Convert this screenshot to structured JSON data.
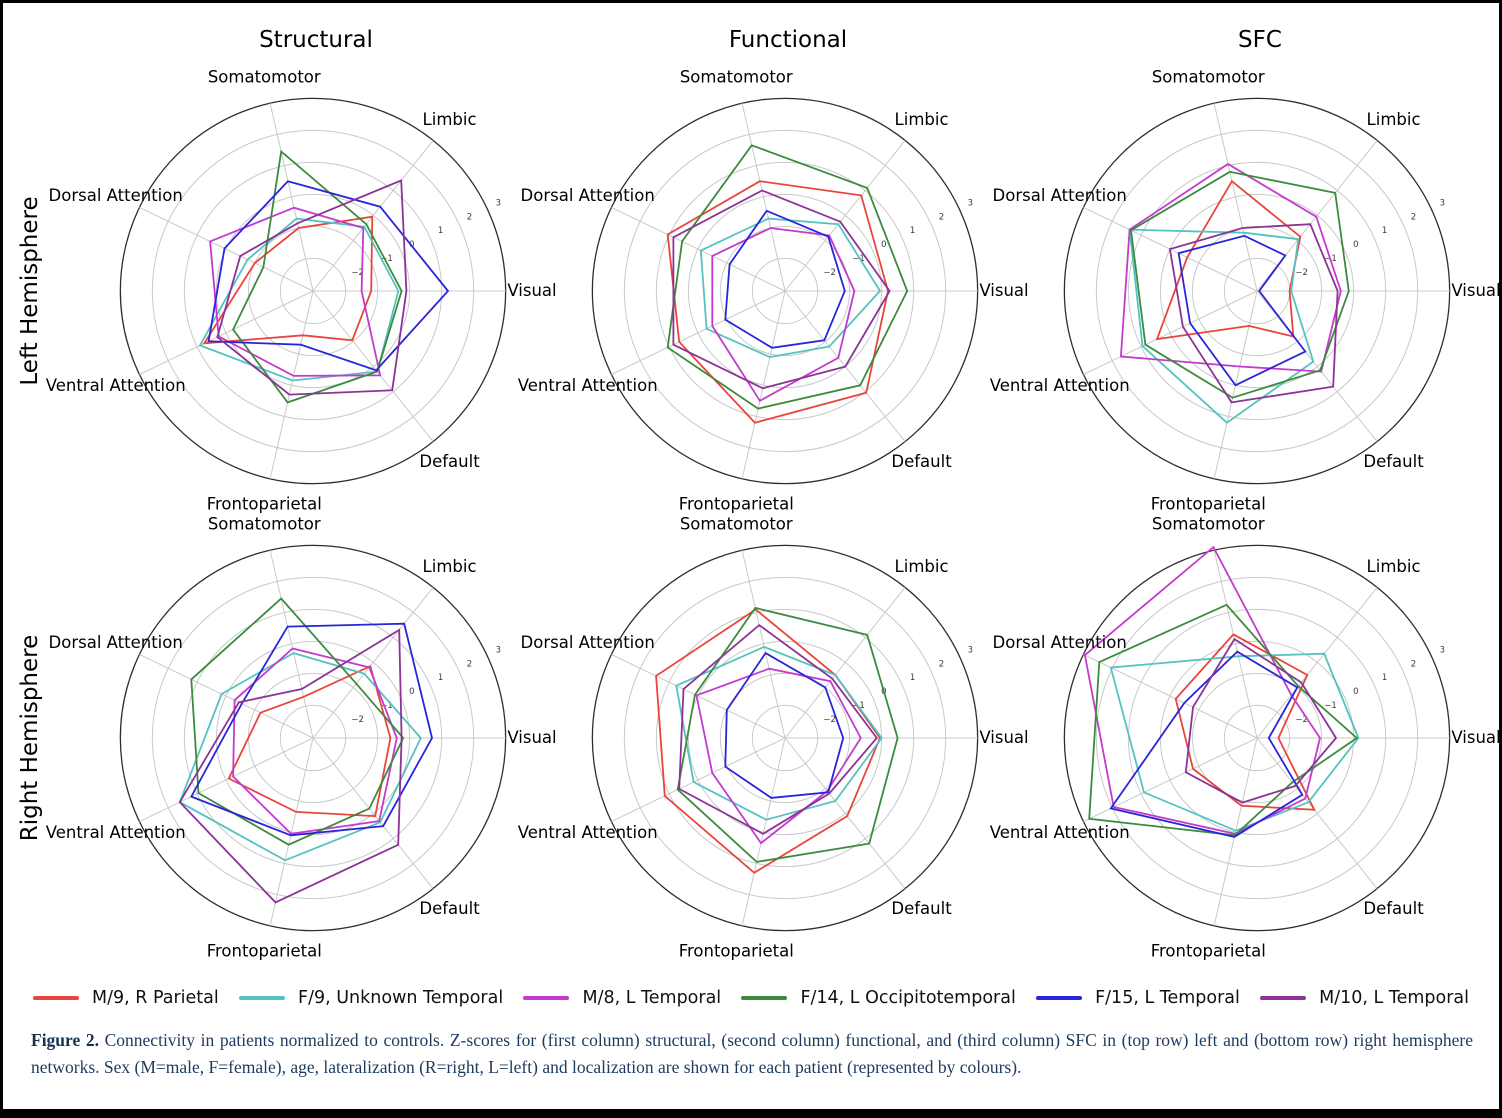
{
  "figure": {
    "column_titles": [
      "Structural",
      "Functional",
      "SFC"
    ],
    "row_labels": [
      "Left Hemisphere",
      "Right Hemisphere"
    ]
  },
  "legend": {
    "items": [
      {
        "label": "M/9, R Parietal",
        "color": "#e8453c"
      },
      {
        "label": "F/9, Unknown Temporal",
        "color": "#53c3c1"
      },
      {
        "label": "M/8, L Temporal",
        "color": "#c43ace"
      },
      {
        "label": "F/14, L Occipitotemporal",
        "color": "#3c8b3d"
      },
      {
        "label": "F/15, L Temporal",
        "color": "#2a25d8"
      },
      {
        "label": "M/10, L Temporal",
        "color": "#8b3496"
      }
    ]
  },
  "caption": {
    "label": "Figure 2.",
    "text": " Connectivity in patients normalized to controls. Z-scores for (first column) structural, (second column) functional, and (third column) SFC in (top row) left and (bottom row) right hemisphere networks. Sex (M=male, F=female), age, lateralization (R=right, L=left) and localization are shown for each patient (represented by colours)."
  },
  "chart_data": [
    {
      "type": "radar",
      "id": "structural-left",
      "column": "Structural",
      "row": "Left Hemisphere",
      "categories": [
        "Visual",
        "Limbic",
        "Somatomotor",
        "Dorsal Attention",
        "Ventral Attention",
        "Frontoparietal",
        "Default"
      ],
      "angles_deg": [
        0,
        51.43,
        102.86,
        154.29,
        205.71,
        257.14,
        308.57
      ],
      "radial_axis": {
        "min": -3,
        "max": 3,
        "ticks": [
          -2,
          -1,
          0,
          1,
          2,
          3
        ],
        "tick_angle_deg": 25.7,
        "grid": true
      },
      "series": [
        {
          "name": "M/9, R Parietal",
          "color": "#e8453c",
          "values": [
            -1.2,
            -0.05,
            -1.0,
            -1.0,
            0.75,
            -1.6,
            -1.05
          ]
        },
        {
          "name": "F/9, Unknown Temporal",
          "color": "#53c3c1",
          "values": [
            -0.35,
            -0.45,
            -0.7,
            -0.75,
            0.9,
            -0.15,
            0.2
          ]
        },
        {
          "name": "M/8, L Temporal",
          "color": "#c43ace",
          "values": [
            -1.5,
            -0.5,
            -0.35,
            0.55,
            0.25,
            -0.3,
            0.35
          ]
        },
        {
          "name": "F/14, L Occipitotemporal",
          "color": "#3c8b3d",
          "values": [
            -0.25,
            -0.35,
            1.45,
            -1.3,
            -0.25,
            0.55,
            0.2
          ]
        },
        {
          "name": "F/15, L Temporal",
          "color": "#2a25d8",
          "values": [
            1.2,
            0.35,
            0.5,
            0.05,
            0.6,
            -1.3,
            0.15
          ]
        },
        {
          "name": "M/10, L Temporal",
          "color": "#8b3496",
          "values": [
            -0.1,
            1.4,
            -0.85,
            -0.5,
            0.3,
            0.3,
            0.95
          ]
        }
      ]
    },
    {
      "type": "radar",
      "id": "functional-left",
      "column": "Functional",
      "row": "Left Hemisphere",
      "categories": [
        "Visual",
        "Limbic",
        "Somatomotor",
        "Dorsal Attention",
        "Ventral Attention",
        "Frontoparietal",
        "Default"
      ],
      "angles_deg": [
        0,
        51.43,
        102.86,
        154.29,
        205.71,
        257.14,
        308.57
      ],
      "radial_axis": {
        "min": -3,
        "max": 3,
        "ticks": [
          -2,
          -1,
          0,
          1,
          2,
          3
        ],
        "tick_angle_deg": 25.7,
        "grid": true
      },
      "series": [
        {
          "name": "M/9, R Parietal",
          "color": "#e8453c",
          "values": [
            0.2,
            0.8,
            0.5,
            1.05,
            0.65,
            1.2,
            1.05
          ]
        },
        {
          "name": "F/9, Unknown Temporal",
          "color": "#53c3c1",
          "values": [
            -0.05,
            -0.35,
            -0.7,
            -0.1,
            -0.3,
            -0.9,
            -0.8
          ]
        },
        {
          "name": "M/8, L Temporal",
          "color": "#c43ace",
          "values": [
            -0.85,
            -0.8,
            -1.0,
            -0.5,
            -0.5,
            0.5,
            -0.35
          ]
        },
        {
          "name": "F/14, L Occipitotemporal",
          "color": "#3c8b3d",
          "values": [
            0.8,
            1.1,
            1.65,
            0.55,
            1.05,
            0.75,
            0.75
          ]
        },
        {
          "name": "F/15, L Temporal",
          "color": "#2a25d8",
          "values": [
            -1.15,
            -0.85,
            -0.45,
            -1.1,
            -0.95,
            -1.2,
            -1.05
          ]
        },
        {
          "name": "M/10, L Temporal",
          "color": "#8b3496",
          "values": [
            0.25,
            -0.25,
            0.2,
            0.85,
            0.85,
            0.1,
            0.0
          ]
        }
      ]
    },
    {
      "type": "radar",
      "id": "sfc-left",
      "column": "SFC",
      "row": "Left Hemisphere",
      "categories": [
        "Visual",
        "Limbic",
        "Somatomotor",
        "Dorsal Attention",
        "Ventral Attention",
        "Frontoparietal",
        "Default"
      ],
      "angles_deg": [
        0,
        51.43,
        102.86,
        154.29,
        205.71,
        257.14,
        308.57
      ],
      "radial_axis": {
        "min": -3,
        "max": 3,
        "ticks": [
          -2,
          -1,
          0,
          1,
          2,
          3
        ],
        "tick_angle_deg": 25.7,
        "grid": true
      },
      "series": [
        {
          "name": "M/9, R Parietal",
          "color": "#e8453c",
          "values": [
            -2.0,
            -0.85,
            0.5,
            -0.6,
            0.45,
            -1.9,
            -1.2
          ]
        },
        {
          "name": "F/9, Unknown Temporal",
          "color": "#53c3c1",
          "values": [
            -1.95,
            -0.95,
            -1.15,
            1.4,
            0.95,
            1.2,
            -0.2
          ]
        },
        {
          "name": "M/8, L Temporal",
          "color": "#c43ace",
          "values": [
            -0.4,
            -0.05,
            1.05,
            1.4,
            1.7,
            -0.6,
            0.2
          ]
        },
        {
          "name": "F/14, L Occipitotemporal",
          "color": "#3c8b3d",
          "values": [
            -0.15,
            0.9,
            0.8,
            1.35,
            0.85,
            0.4,
            0.15
          ]
        },
        {
          "name": "F/15, L Temporal",
          "color": "#2a25d8",
          "values": [
            -2.95,
            -1.6,
            -1.25,
            -0.3,
            -0.7,
            0.0,
            -0.6
          ]
        },
        {
          "name": "M/10, L Temporal",
          "color": "#8b3496",
          "values": [
            -0.5,
            -0.35,
            -1.0,
            0.0,
            -0.45,
            0.55,
            0.8
          ]
        }
      ]
    },
    {
      "type": "radar",
      "id": "structural-right",
      "column": "Structural",
      "row": "Right Hemisphere",
      "categories": [
        "Visual",
        "Limbic",
        "Somatomotor",
        "Dorsal Attention",
        "Ventral Attention",
        "Frontoparietal",
        "Default"
      ],
      "angles_deg": [
        0,
        51.43,
        102.86,
        154.29,
        205.71,
        257.14,
        308.57
      ],
      "radial_axis": {
        "min": -3,
        "max": 3,
        "ticks": [
          -2,
          -1,
          0,
          1,
          2,
          3
        ],
        "tick_angle_deg": 25.7,
        "grid": true
      },
      "series": [
        {
          "name": "M/9, R Parietal",
          "color": "#e8453c",
          "values": [
            -0.6,
            -0.15,
            -1.7,
            -1.2,
            -0.1,
            -0.65,
            0.1
          ]
        },
        {
          "name": "F/9, Unknown Temporal",
          "color": "#53c3c1",
          "values": [
            0.35,
            -0.45,
            -0.3,
            0.15,
            1.6,
            0.9,
            0.35
          ]
        },
        {
          "name": "M/8, L Temporal",
          "color": "#c43ace",
          "values": [
            -0.4,
            -0.2,
            -0.15,
            -0.3,
            -0.25,
            0.05,
            0.3
          ]
        },
        {
          "name": "F/14, L Occipitotemporal",
          "color": "#3c8b3d",
          "values": [
            -0.2,
            -0.85,
            1.45,
            1.2,
            0.95,
            0.4,
            -0.2
          ]
        },
        {
          "name": "F/15, L Temporal",
          "color": "#2a25d8",
          "values": [
            0.7,
            1.55,
            0.55,
            -0.55,
            1.2,
            0.1,
            0.5
          ]
        },
        {
          "name": "M/10, L Temporal",
          "color": "#8b3496",
          "values": [
            -0.25,
            1.3,
            -1.45,
            -0.45,
            1.6,
            2.25,
            1.25
          ]
        }
      ]
    },
    {
      "type": "radar",
      "id": "functional-right",
      "column": "Functional",
      "row": "Right Hemisphere",
      "categories": [
        "Visual",
        "Limbic",
        "Somatomotor",
        "Dorsal Attention",
        "Ventral Attention",
        "Frontoparietal",
        "Default"
      ],
      "angles_deg": [
        0,
        51.43,
        102.86,
        154.29,
        205.71,
        257.14,
        308.57
      ],
      "radial_axis": {
        "min": -3,
        "max": 3,
        "ticks": [
          -2,
          -1,
          0,
          1,
          2,
          3
        ],
        "tick_angle_deg": 25.7,
        "grid": true
      },
      "series": [
        {
          "name": "M/9, R Parietal",
          "color": "#e8453c",
          "values": [
            -0.05,
            -0.5,
            1.1,
            1.45,
            1.15,
            1.3,
            0.1
          ]
        },
        {
          "name": "F/9, Unknown Temporal",
          "color": "#53c3c1",
          "values": [
            0.0,
            -0.5,
            -0.1,
            0.75,
            0.15,
            -0.4,
            -0.5
          ]
        },
        {
          "name": "M/8, L Temporal",
          "color": "#c43ace",
          "values": [
            -0.65,
            -0.75,
            -0.8,
            0.05,
            -0.5,
            0.35,
            -0.9
          ]
        },
        {
          "name": "F/14, L Occipitotemporal",
          "color": "#3c8b3d",
          "values": [
            0.5,
            1.1,
            1.15,
            0.1,
            0.7,
            0.95,
            1.2
          ]
        },
        {
          "name": "F/15, L Temporal",
          "color": "#2a25d8",
          "values": [
            -1.2,
            -1.0,
            -0.3,
            -1.0,
            -0.95,
            -1.1,
            -0.85
          ]
        },
        {
          "name": "M/10, L Temporal",
          "color": "#8b3496",
          "values": [
            -0.15,
            -0.65,
            0.6,
            0.5,
            0.65,
            0.05,
            -0.8
          ]
        }
      ]
    },
    {
      "type": "radar",
      "id": "sfc-right",
      "column": "SFC",
      "row": "Right Hemisphere",
      "categories": [
        "Visual",
        "Limbic",
        "Somatomotor",
        "Dorsal Attention",
        "Ventral Attention",
        "Frontoparietal",
        "Default"
      ],
      "angles_deg": [
        0,
        51.43,
        102.86,
        154.29,
        205.71,
        257.14,
        308.57
      ],
      "radial_axis": {
        "min": -3,
        "max": 3,
        "ticks": [
          -2,
          -1,
          0,
          1,
          2,
          3
        ],
        "tick_angle_deg": 25.7,
        "grid": true
      },
      "series": [
        {
          "name": "M/9, R Parietal",
          "color": "#e8453c",
          "values": [
            -2.35,
            -0.5,
            0.3,
            -0.2,
            -0.8,
            -0.85,
            -0.15
          ]
        },
        {
          "name": "F/9, Unknown Temporal",
          "color": "#53c3c1",
          "values": [
            0.15,
            0.35,
            -0.4,
            2.05,
            0.9,
            -0.05,
            -0.45
          ]
        },
        {
          "name": "M/8, L Temporal",
          "color": "#c43ace",
          "values": [
            -1.05,
            -1.3,
            3.1,
            2.95,
            1.95,
            0.05,
            -0.6
          ]
        },
        {
          "name": "F/14, L Occipitotemporal",
          "color": "#3c8b3d",
          "values": [
            0.1,
            -0.95,
            1.25,
            2.45,
            2.8,
            0.1,
            -1.25
          ]
        },
        {
          "name": "F/15, L Temporal",
          "color": "#2a25d8",
          "values": [
            -2.65,
            -1.0,
            -0.25,
            -0.5,
            2.05,
            0.15,
            -0.75
          ]
        },
        {
          "name": "M/10, L Temporal",
          "color": "#8b3496",
          "values": [
            -0.55,
            -0.8,
            0.15,
            -0.8,
            -0.55,
            -0.95,
            -1.1
          ]
        }
      ]
    }
  ]
}
